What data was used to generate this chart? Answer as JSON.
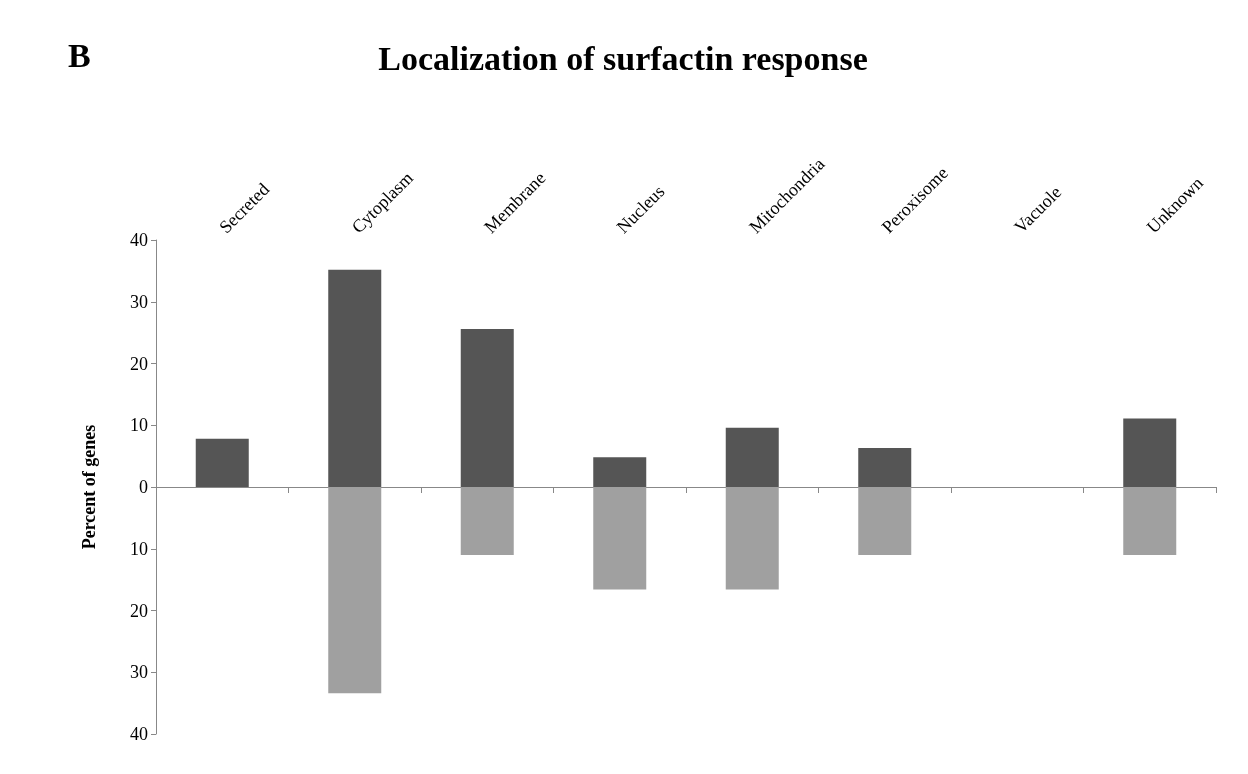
{
  "chart_data": {
    "type": "bar",
    "title": "Localization of surfactin response",
    "ylabel": "Percent of genes",
    "annotations": [
      "B"
    ],
    "categories": [
      "Secreted",
      "Cytoplasm",
      "Membrane",
      "Nucleus",
      "Mitochondria",
      "Peroxisome",
      "Vacuole",
      "Unknown"
    ],
    "stacked": true,
    "series": [
      {
        "color": "#555555",
        "values": [
          7.8,
          35.2,
          25.6,
          4.8,
          9.6,
          6.3,
          0,
          11.1
        ]
      },
      {
        "color": "#a0a0a0",
        "values": [
          0,
          -33.4,
          -11,
          -16.6,
          -16.6,
          -11,
          0,
          -11
        ]
      }
    ],
    "ylim": [
      -40,
      40
    ],
    "yticks": [
      {
        "value": -40,
        "label": "40"
      },
      {
        "value": -30,
        "label": "30"
      },
      {
        "value": -20,
        "label": "20"
      },
      {
        "value": -10,
        "label": "10"
      },
      0,
      10,
      20,
      30,
      40
    ]
  }
}
